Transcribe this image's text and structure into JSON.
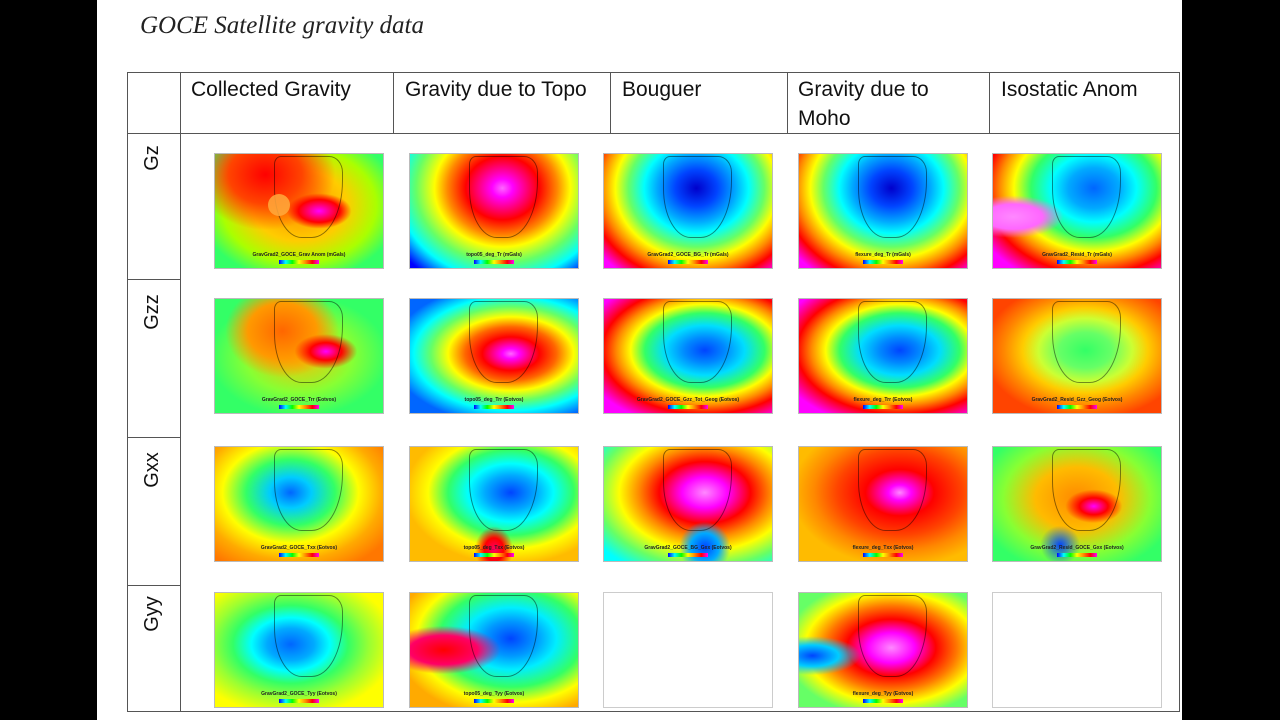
{
  "slide": {
    "title": "GOCE Satellite gravity data"
  },
  "columns": [
    {
      "label": "Collected Gravity"
    },
    {
      "label": "Gravity due to Topo"
    },
    {
      "label": "Bouguer"
    },
    {
      "label": "Gravity due to Moho"
    },
    {
      "label": "Isostatic Anom"
    }
  ],
  "rows": [
    {
      "label": "Gz"
    },
    {
      "label": "Gzz"
    },
    {
      "label": "Gxx"
    },
    {
      "label": "Gyy"
    }
  ],
  "maps": {
    "gz_collected": {
      "caption": "GravGrad2_GOCE_Grav Anom (mGals)",
      "style": "c-warm"
    },
    "gz_topo": {
      "caption": "topo05_deg_Tr (mGals)",
      "style": "c-topo"
    },
    "gz_bouguer": {
      "caption": "GravGrad2_GOCE_BG_Tr (mGals)",
      "style": "c-blue"
    },
    "gz_moho": {
      "caption": "flexure_deg_Tr (mGals)",
      "style": "c-blue"
    },
    "gz_isostatic": {
      "caption": "GravGrad2_Resid_Tr (mGals)",
      "style": "c-iso"
    },
    "gzz_collected": {
      "caption": "GravGrad2_GOCE_Trr (Eotvos)",
      "style": "c-warm2"
    },
    "gzz_topo": {
      "caption": "topo05_deg_Trr (Eotvos)",
      "style": "c-topo2"
    },
    "gzz_bouguer": {
      "caption": "GravGrad2_GOCE_Gzz_Tot_Geog (Eotvos)",
      "style": "c-blue2"
    },
    "gzz_moho": {
      "caption": "flexure_deg_Trr (Eotvos)",
      "style": "c-blue2"
    },
    "gzz_isostatic": {
      "caption": "GravGrad2_Resid_Gzz_Geog (Eotvos)",
      "style": "c-iso2"
    },
    "gxx_collected": {
      "caption": "GravGrad2_GOCE_Txx (Eotvos)",
      "style": "c-xx"
    },
    "gxx_topo": {
      "caption": "topo05_deg_Txx (Eotvos)",
      "style": "c-xx2"
    },
    "gxx_bouguer": {
      "caption": "GravGrad2_GOCE_BG_Gxx (Eotvos)",
      "style": "c-mag"
    },
    "gxx_moho": {
      "caption": "flexure_deg_Txx (Eotvos)",
      "style": "c-mag2"
    },
    "gxx_isostatic": {
      "caption": "GravGrad2_Resid_GOCE_Gxx (Eotvos)",
      "style": "c-xx3"
    },
    "gyy_collected": {
      "caption": "GravGrad2_GOCE_Tyy (Eotvos)",
      "style": "c-yy"
    },
    "gyy_topo": {
      "caption": "topo05_deg_Tyy (Eotvos)",
      "style": "c-yy2"
    },
    "gyy_moho": {
      "caption": "flexure_deg_Tyy (Eotvos)",
      "style": "c-mag3"
    }
  }
}
